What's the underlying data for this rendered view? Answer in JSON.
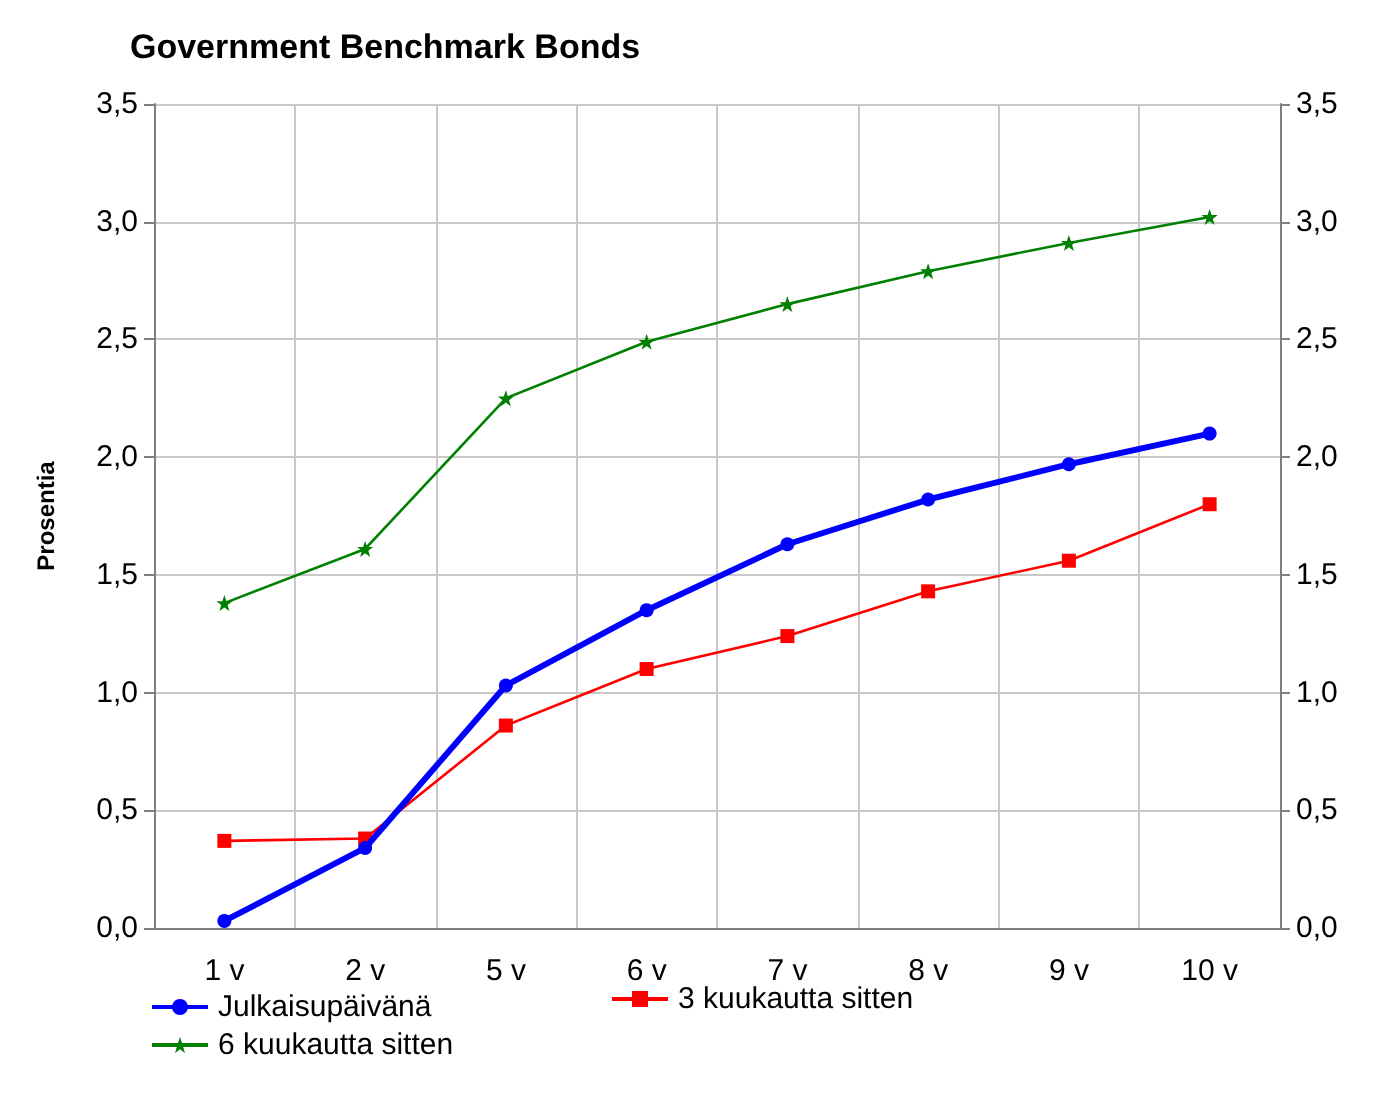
{
  "chart_data": {
    "type": "line",
    "title": "Government Benchmark Bonds",
    "ylabel": "Prosentia",
    "categories": [
      "1 v",
      "2 v",
      "5 v",
      "6 v",
      "7 v",
      "8 v",
      "9 v",
      "10 v"
    ],
    "series": [
      {
        "name": "Julkaisupäivänä",
        "color": "#0000ff",
        "marker": "circle",
        "values": [
          0.03,
          0.34,
          1.03,
          1.35,
          1.63,
          1.82,
          1.97,
          2.1
        ]
      },
      {
        "name": "3 kuukautta sitten",
        "color": "#ff0000",
        "marker": "square",
        "values": [
          0.37,
          0.38,
          0.86,
          1.1,
          1.24,
          1.43,
          1.56,
          1.8
        ]
      },
      {
        "name": "6 kuukautta sitten",
        "color": "#008000",
        "marker": "star",
        "values": [
          1.38,
          1.61,
          2.25,
          2.49,
          2.65,
          2.79,
          2.91,
          3.02
        ]
      }
    ],
    "ylim": [
      0,
      3.5
    ],
    "yticks": [
      {
        "value": 0,
        "label": "0,0"
      },
      {
        "value": 0.5,
        "label": "0,5"
      },
      {
        "value": 1,
        "label": "1,0"
      },
      {
        "value": 1.5,
        "label": "1,5"
      },
      {
        "value": 2,
        "label": "2,0"
      },
      {
        "value": 2.5,
        "label": "2,5"
      },
      {
        "value": 3,
        "label": "3,0"
      },
      {
        "value": 3.5,
        "label": "3,5"
      }
    ],
    "y2lim": [
      0,
      3.5
    ],
    "y2ticks": [
      {
        "value": 0,
        "label": "0,0"
      },
      {
        "value": 0.5,
        "label": "0,5"
      },
      {
        "value": 1,
        "label": "1,0"
      },
      {
        "value": 1.5,
        "label": "1,5"
      },
      {
        "value": 2,
        "label": "2,0"
      },
      {
        "value": 2.5,
        "label": "2,5"
      },
      {
        "value": 3,
        "label": "3,0"
      },
      {
        "value": 3.5,
        "label": "3,5"
      }
    ],
    "grid": true,
    "legend": "bottom left",
    "line_style": "solid"
  }
}
